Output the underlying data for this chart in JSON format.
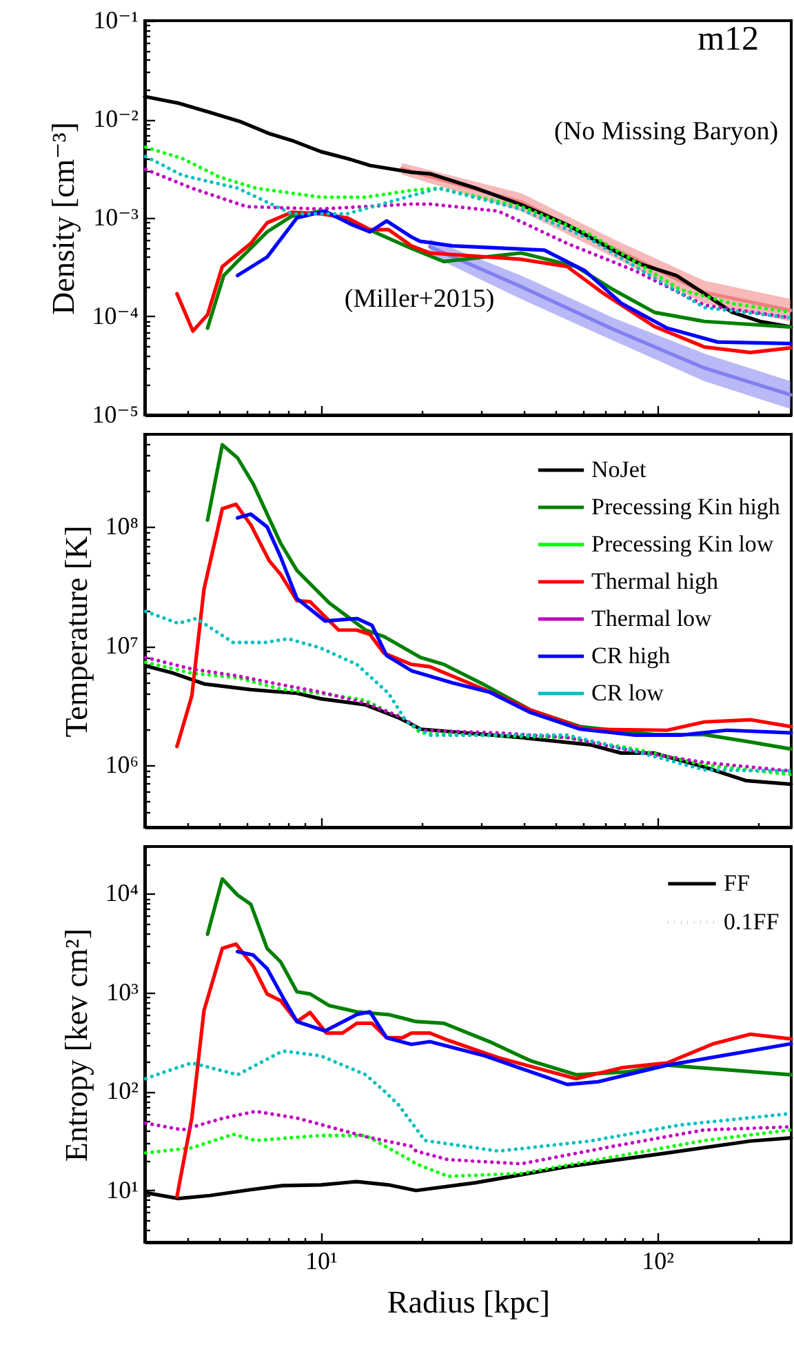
{
  "chart_data": [
    {
      "type": "line",
      "ylabel": "Density [cm⁻³]",
      "log": "xy",
      "legend": false,
      "tick_labels": "y",
      "annotations": [
        "m12",
        "(No Missing Baryon)",
        "(Miller+2015)"
      ],
      "xlim": [
        3,
        250
      ],
      "ylim": [
        1e-05,
        0.1
      ],
      "xticks": [
        {
          "value": 3,
          "label": null
        },
        {
          "value": 4,
          "label": null
        },
        {
          "value": 5,
          "label": null
        },
        {
          "value": 6,
          "label": null
        },
        {
          "value": 7,
          "label": null
        },
        {
          "value": 8,
          "label": null
        },
        {
          "value": 9,
          "label": null
        },
        {
          "value": 10,
          "label": null
        },
        {
          "value": 20,
          "label": null
        },
        {
          "value": 30,
          "label": null
        },
        {
          "value": 40,
          "label": null
        },
        {
          "value": 50,
          "label": null
        },
        {
          "value": 60,
          "label": null
        },
        {
          "value": 70,
          "label": null
        },
        {
          "value": 80,
          "label": null
        },
        {
          "value": 90,
          "label": null
        },
        {
          "value": 100,
          "label": null
        },
        {
          "value": 200,
          "label": null
        }
      ],
      "yticks": [
        {
          "value": 1e-05,
          "label": "10⁻⁵"
        },
        {
          "value": 2e-05,
          "label": null
        },
        {
          "value": 3e-05,
          "label": null
        },
        {
          "value": 4e-05,
          "label": null
        },
        {
          "value": 5e-05,
          "label": null
        },
        {
          "value": 6e-05,
          "label": null
        },
        {
          "value": 7e-05,
          "label": null
        },
        {
          "value": 8e-05,
          "label": null
        },
        {
          "value": 9e-05,
          "label": null
        },
        {
          "value": 0.0001,
          "label": "10⁻⁴"
        },
        {
          "value": 0.0002,
          "label": null
        },
        {
          "value": 0.0003,
          "label": null
        },
        {
          "value": 0.0004,
          "label": null
        },
        {
          "value": 0.0005,
          "label": null
        },
        {
          "value": 0.0006,
          "label": null
        },
        {
          "value": 0.0007,
          "label": null
        },
        {
          "value": 0.0008,
          "label": null
        },
        {
          "value": 0.0009,
          "label": null
        },
        {
          "value": 0.001,
          "label": "10⁻³"
        },
        {
          "value": 0.002,
          "label": null
        },
        {
          "value": 0.003,
          "label": null
        },
        {
          "value": 0.004,
          "label": null
        },
        {
          "value": 0.005,
          "label": null
        },
        {
          "value": 0.006,
          "label": null
        },
        {
          "value": 0.007,
          "label": null
        },
        {
          "value": 0.008,
          "label": null
        },
        {
          "value": 0.009,
          "label": null
        },
        {
          "value": 0.01,
          "label": "10⁻²"
        },
        {
          "value": 0.02,
          "label": null
        },
        {
          "value": 0.03,
          "label": null
        },
        {
          "value": 0.04,
          "label": null
        },
        {
          "value": 0.05,
          "label": null
        },
        {
          "value": 0.06,
          "label": null
        },
        {
          "value": 0.07,
          "label": null
        },
        {
          "value": 0.08,
          "label": null
        },
        {
          "value": 0.09,
          "label": null
        },
        {
          "value": 0.1,
          "label": "10⁻¹"
        }
      ],
      "series": [
        {
          "type": "line",
          "color": "#f08080",
          "x": [
            17.4,
            39.4,
            73.9,
            138,
            249
          ],
          "values": [
            0.00315,
            0.00145,
            0.00049,
            0.000175,
            0.000115
          ],
          "lower": [
            0.00275,
            0.00117,
            0.0004,
            0.000135,
            8.9e-05
          ],
          "upper": [
            0.0036,
            0.00178,
            0.00061,
            0.00023,
            0.00015
          ]
        },
        {
          "type": "line",
          "color": "#8080f0",
          "x": [
            21.1,
            39.4,
            73.9,
            138,
            249
          ],
          "values": [
            0.00051,
            0.0002,
            7.4e-05,
            3e-05,
            1.6e-05
          ],
          "lower": [
            0.00042,
            0.00015,
            5.7e-05,
            2.2e-05,
            1.15e-05
          ],
          "upper": [
            0.00061,
            0.00026,
            9.7e-05,
            4.2e-05,
            2.2e-05
          ]
        },
        {
          "color": "#000000",
          "line_style": "solid",
          "x": [
            3,
            3.8,
            4.7,
            5.8,
            7,
            8.2,
            10,
            12,
            14,
            18.6,
            21.1,
            28.9,
            39.4,
            54,
            73.9,
            89,
            114,
            138,
            167,
            202,
            250
          ],
          "values": [
            0.017,
            0.0145,
            0.0117,
            0.0094,
            0.0072,
            0.0061,
            0.0047,
            0.004,
            0.0034,
            0.0029,
            0.0028,
            0.002,
            0.00136,
            0.00085,
            0.00047,
            0.00034,
            0.00026,
            0.00017,
            0.00011,
            8.9e-05,
            7.8e-05
          ]
        },
        {
          "color": "#008000",
          "line_style": "solid",
          "x": [
            4.61,
            5.15,
            5.83,
            6.93,
            8.2,
            10,
            12,
            14.4,
            18.6,
            23.2,
            39.4,
            57.4,
            73.9,
            98,
            138,
            249
          ],
          "values": [
            7.6e-05,
            0.00026,
            0.0004,
            0.00072,
            0.00104,
            0.00117,
            0.00093,
            0.00072,
            0.00049,
            0.00036,
            0.00044,
            0.00032,
            0.000187,
            0.00011,
            8.9e-05,
            7.8e-05
          ]
        },
        {
          "color": "#00ff00",
          "line_style": "dotted",
          "x": [
            3.02,
            3.88,
            5,
            6.41,
            10,
            13.6,
            18.6,
            22.4,
            39.4,
            63,
            86,
            117,
            167,
            249
          ],
          "values": [
            0.0052,
            0.004,
            0.0026,
            0.002,
            0.00162,
            0.00162,
            0.0019,
            0.002,
            0.0013,
            0.00068,
            0.00036,
            0.000187,
            0.000135,
            0.00011
          ]
        },
        {
          "color": "#ff0000",
          "line_style": "solid",
          "x": [
            3.74,
            4.17,
            4.61,
            5.1,
            6.2,
            6.93,
            8.2,
            10,
            12,
            14,
            15.9,
            18.6,
            21.1,
            39.4,
            54,
            69.4,
            98,
            138,
            189,
            249
          ],
          "values": [
            0.00017,
            7.1e-05,
            0.000104,
            0.00032,
            0.00055,
            0.00089,
            0.00114,
            0.0011,
            0.001,
            0.00076,
            0.00076,
            0.00052,
            0.00044,
            0.00038,
            0.00032,
            0.00017,
            7.9e-05,
            4.9e-05,
            4.3e-05,
            4.8e-05
          ]
        },
        {
          "color": "#bf00bf",
          "line_style": "dotted",
          "x": [
            3.02,
            4.14,
            6.02,
            10,
            18.6,
            21.1,
            33.7,
            54,
            86,
            138,
            249
          ],
          "values": [
            0.0031,
            0.002,
            0.0013,
            0.00123,
            0.00138,
            0.00138,
            0.00117,
            0.00055,
            0.00029,
            0.00013,
            9.7e-05
          ]
        },
        {
          "color": "#0000ff",
          "line_style": "solid",
          "x": [
            5.66,
            6.93,
            8.5,
            10.3,
            12.4,
            14,
            15.7,
            18.6,
            19.7,
            24.6,
            46.2,
            61,
            78.4,
            107,
            151,
            249
          ],
          "values": [
            0.00026,
            0.0004,
            0.001,
            0.00117,
            0.00085,
            0.00072,
            0.00093,
            0.00064,
            0.00058,
            0.00052,
            0.00047,
            0.00029,
            0.000135,
            7.6e-05,
            5.5e-05,
            5.3e-05
          ]
        },
        {
          "color": "#00bfbf",
          "line_style": "dotted",
          "x": [
            3.02,
            3.88,
            5.66,
            8.2,
            12,
            15.9,
            22.4,
            39.4,
            63,
            86,
            138,
            249
          ],
          "values": [
            0.0042,
            0.0027,
            0.002,
            0.0011,
            0.0011,
            0.00144,
            0.002,
            0.00122,
            0.00061,
            0.00032,
            0.000123,
            9.7e-05
          ]
        }
      ]
    },
    {
      "type": "line",
      "ylabel": "Temperature [K]",
      "log": "xy",
      "legend": "top right",
      "tick_labels": "y",
      "xlim": [
        3,
        250
      ],
      "ylim": [
        300000,
        600000000
      ],
      "xticks": [
        {
          "value": 3,
          "label": null
        },
        {
          "value": 4,
          "label": null
        },
        {
          "value": 5,
          "label": null
        },
        {
          "value": 6,
          "label": null
        },
        {
          "value": 7,
          "label": null
        },
        {
          "value": 8,
          "label": null
        },
        {
          "value": 9,
          "label": null
        },
        {
          "value": 10,
          "label": null
        },
        {
          "value": 20,
          "label": null
        },
        {
          "value": 30,
          "label": null
        },
        {
          "value": 40,
          "label": null
        },
        {
          "value": 50,
          "label": null
        },
        {
          "value": 60,
          "label": null
        },
        {
          "value": 70,
          "label": null
        },
        {
          "value": 80,
          "label": null
        },
        {
          "value": 90,
          "label": null
        },
        {
          "value": 100,
          "label": null
        },
        {
          "value": 200,
          "label": null
        }
      ],
      "yticks": [
        {
          "value": 300000,
          "label": null
        },
        {
          "value": 400000,
          "label": null
        },
        {
          "value": 500000,
          "label": null
        },
        {
          "value": 600000,
          "label": null
        },
        {
          "value": 700000,
          "label": null
        },
        {
          "value": 800000,
          "label": null
        },
        {
          "value": 900000,
          "label": null
        },
        {
          "value": 1000000,
          "label": "10⁶"
        },
        {
          "value": 2000000,
          "label": null
        },
        {
          "value": 3000000,
          "label": null
        },
        {
          "value": 4000000,
          "label": null
        },
        {
          "value": 5000000,
          "label": null
        },
        {
          "value": 6000000,
          "label": null
        },
        {
          "value": 7000000,
          "label": null
        },
        {
          "value": 8000000,
          "label": null
        },
        {
          "value": 9000000,
          "label": null
        },
        {
          "value": 10000000,
          "label": "10⁷"
        },
        {
          "value": 20000000,
          "label": null
        },
        {
          "value": 30000000,
          "label": null
        },
        {
          "value": 40000000,
          "label": null
        },
        {
          "value": 50000000,
          "label": null
        },
        {
          "value": 60000000,
          "label": null
        },
        {
          "value": 70000000,
          "label": null
        },
        {
          "value": 80000000,
          "label": null
        },
        {
          "value": 90000000,
          "label": null
        },
        {
          "value": 100000000,
          "label": "10⁸"
        },
        {
          "value": 200000000,
          "label": null
        },
        {
          "value": 300000000,
          "label": null
        },
        {
          "value": 400000000,
          "label": null
        },
        {
          "value": 500000000,
          "label": null
        },
        {
          "value": 600000000,
          "label": null
        }
      ],
      "series": [
        {
          "name": "NoJet",
          "color": "#000000",
          "line_style": "solid",
          "x": [
            3.02,
            3.65,
            4.5,
            6.2,
            8.5,
            10,
            13.6,
            17,
            18.6,
            19.8,
            39.4,
            63,
            78,
            98,
            138,
            183,
            250
          ],
          "values": [
            6800000,
            5900000,
            4800000,
            4300000,
            4000000,
            3600000,
            3200000,
            2500000,
            2200000,
            2000000,
            1700000,
            1480000,
            1260000,
            1260000,
            960000,
            740000,
            690000
          ]
        },
        {
          "name": "Precessing Kin high",
          "color": "#008000",
          "line_style": "solid",
          "x": [
            4.61,
            5.1,
            5.66,
            6.3,
            7.6,
            8.5,
            10.6,
            13.6,
            15.4,
            19.8,
            23.2,
            30.7,
            42,
            59,
            98,
            138,
            189,
            250
          ],
          "values": [
            114000000,
            490000000,
            380000000,
            230000000,
            73000000,
            43000000,
            23000000,
            13600000,
            12000000,
            8000000,
            7000000,
            4700000,
            2900000,
            2100000,
            1800000,
            1800000,
            1560000,
            1360000
          ]
        },
        {
          "name": "Precessing Kin low",
          "color": "#00ff00",
          "line_style": "dotted",
          "x": [
            3.02,
            4.14,
            5.66,
            7.7,
            10,
            13.6,
            15.4,
            17.5,
            19.8,
            28.9,
            54,
            86,
            138,
            250
          ],
          "values": [
            7300000,
            5900000,
            5400000,
            4300000,
            4000000,
            3500000,
            2900000,
            2500000,
            1860000,
            1780000,
            1700000,
            1360000,
            1000000,
            830000
          ]
        },
        {
          "name": "Thermal high",
          "color": "#ff0000",
          "line_style": "solid",
          "x": [
            3.74,
            4.14,
            4.5,
            5.1,
            5.6,
            6.2,
            7.03,
            7.6,
            8.5,
            9.3,
            11.3,
            12.8,
            14,
            15.4,
            18.6,
            21.1,
            30.7,
            42,
            61,
            107,
            138,
            189,
            250
          ],
          "values": [
            1430000,
            3800000,
            30000000,
            142000000,
            155000000,
            104000000,
            52000000,
            40000000,
            24000000,
            23500000,
            13600000,
            13600000,
            12500000,
            8700000,
            7000000,
            6700000,
            4300000,
            2900000,
            2000000,
            1960000,
            2300000,
            2400000,
            2100000
          ]
        },
        {
          "name": "Thermal low",
          "color": "#bf00bf",
          "line_style": "dotted",
          "x": [
            3.02,
            4.14,
            5.66,
            7.7,
            10,
            13.6,
            17.5,
            19.8,
            33.7,
            54,
            86,
            138,
            250
          ],
          "values": [
            8000000,
            6400000,
            5600000,
            4700000,
            4100000,
            3300000,
            2500000,
            1960000,
            1860000,
            1700000,
            1300000,
            1050000,
            890000
          ]
        },
        {
          "name": "CR high",
          "color": "#0000ff",
          "line_style": "solid",
          "x": [
            5.66,
            6.2,
            6.93,
            7.6,
            8.5,
            10.3,
            12.8,
            14.2,
            15.7,
            18.6,
            24.6,
            31.7,
            42,
            59,
            86,
            117,
            161,
            250
          ],
          "values": [
            119000000,
            128000000,
            100000000,
            56000000,
            25000000,
            16200000,
            17000000,
            14900000,
            8300000,
            6200000,
            4900000,
            4100000,
            2760000,
            2000000,
            1780000,
            1780000,
            1960000,
            1860000
          ]
        },
        {
          "name": "CR low",
          "color": "#00bfbf",
          "line_style": "dotted",
          "x": [
            3.02,
            3.77,
            4.27,
            5.49,
            6.83,
            8,
            10,
            12.8,
            15.9,
            18,
            21.1,
            54,
            86,
            138,
            250
          ],
          "values": [
            19500000,
            15500000,
            17000000,
            10700000,
            10700000,
            11500000,
            9600000,
            7000000,
            4000000,
            2300000,
            1780000,
            1780000,
            1300000,
            910000,
            890000
          ]
        }
      ]
    },
    {
      "type": "line",
      "xlabel": "Radius [kpc]",
      "ylabel": "Entropy [kev cm²]",
      "log": "xy",
      "legend": "top right",
      "annotations": [
        "FF",
        "0.1FF"
      ],
      "xlim": [
        3,
        250
      ],
      "ylim": [
        3,
        30000
      ],
      "xticks": [
        {
          "value": 3,
          "label": null
        },
        {
          "value": 4,
          "label": null
        },
        {
          "value": 5,
          "label": null
        },
        {
          "value": 6,
          "label": null
        },
        {
          "value": 7,
          "label": null
        },
        {
          "value": 8,
          "label": null
        },
        {
          "value": 9,
          "label": null
        },
        {
          "value": 10,
          "label": "10¹"
        },
        {
          "value": 20,
          "label": null
        },
        {
          "value": 30,
          "label": null
        },
        {
          "value": 40,
          "label": null
        },
        {
          "value": 50,
          "label": null
        },
        {
          "value": 60,
          "label": null
        },
        {
          "value": 70,
          "label": null
        },
        {
          "value": 80,
          "label": null
        },
        {
          "value": 90,
          "label": null
        },
        {
          "value": 100,
          "label": "10²"
        },
        {
          "value": 200,
          "label": null
        }
      ],
      "yticks": [
        {
          "value": 3,
          "label": null
        },
        {
          "value": 4,
          "label": null
        },
        {
          "value": 5,
          "label": null
        },
        {
          "value": 6,
          "label": null
        },
        {
          "value": 7,
          "label": null
        },
        {
          "value": 8,
          "label": null
        },
        {
          "value": 9,
          "label": null
        },
        {
          "value": 10,
          "label": "10¹"
        },
        {
          "value": 20,
          "label": null
        },
        {
          "value": 30,
          "label": null
        },
        {
          "value": 40,
          "label": null
        },
        {
          "value": 50,
          "label": null
        },
        {
          "value": 60,
          "label": null
        },
        {
          "value": 70,
          "label": null
        },
        {
          "value": 80,
          "label": null
        },
        {
          "value": 90,
          "label": null
        },
        {
          "value": 100,
          "label": "10²"
        },
        {
          "value": 200,
          "label": null
        },
        {
          "value": 300,
          "label": null
        },
        {
          "value": 400,
          "label": null
        },
        {
          "value": 500,
          "label": null
        },
        {
          "value": 600,
          "label": null
        },
        {
          "value": 700,
          "label": null
        },
        {
          "value": 800,
          "label": null
        },
        {
          "value": 900,
          "label": null
        },
        {
          "value": 1000,
          "label": "10³"
        },
        {
          "value": 2000,
          "label": null
        },
        {
          "value": 3000,
          "label": null
        },
        {
          "value": 4000,
          "label": null
        },
        {
          "value": 5000,
          "label": null
        },
        {
          "value": 6000,
          "label": null
        },
        {
          "value": 7000,
          "label": null
        },
        {
          "value": 8000,
          "label": null
        },
        {
          "value": 9000,
          "label": null
        },
        {
          "value": 10000,
          "label": "10⁴"
        },
        {
          "value": 20000,
          "label": null
        },
        {
          "value": 30000,
          "label": null
        }
      ],
      "series": [
        {
          "color": "#000000",
          "line_style": "solid",
          "x": [
            3.02,
            3.77,
            4.69,
            6.2,
            7.7,
            10,
            12.8,
            15.9,
            19.2,
            28.9,
            54,
            98,
            189,
            250
          ],
          "values": [
            9.5,
            8.3,
            8.9,
            10.2,
            11.2,
            11.4,
            12.3,
            11.4,
            10,
            12,
            17.4,
            23,
            31.6,
            34
          ]
        },
        {
          "color": "#008000",
          "line_style": "solid",
          "x": [
            4.61,
            5.1,
            5.66,
            6.2,
            6.93,
            7.6,
            8.5,
            9.3,
            10.6,
            12.8,
            15.9,
            18,
            19.2,
            23.2,
            31.7,
            42,
            57.4,
            81,
            107,
            161,
            250
          ],
          "values": [
            3900,
            14100,
            9700,
            7800,
            2800,
            2050,
            1020,
            970,
            740,
            640,
            600,
            540,
            510,
            490,
            320,
            205,
            148,
            158,
            185,
            166,
            148
          ]
        },
        {
          "color": "#00ff00",
          "line_style": "dotted",
          "x": [
            3.02,
            4.14,
            5.5,
            6.4,
            10,
            13.6,
            18.6,
            19.2,
            23.9,
            39.4,
            73.9,
            138,
            250
          ],
          "values": [
            24,
            27,
            37,
            32,
            36,
            36,
            20,
            18.6,
            13.9,
            14.9,
            21.8,
            32,
            41
          ]
        },
        {
          "color": "#ff0000",
          "line_style": "solid",
          "x": [
            3.74,
            4.14,
            4.5,
            5.1,
            5.6,
            6.3,
            6.93,
            7.6,
            8.5,
            9.3,
            10.4,
            11.6,
            12.8,
            14.2,
            15.7,
            17.5,
            18.6,
            21.1,
            23.9,
            33.7,
            57.4,
            78.4,
            107,
            147,
            189,
            250
          ],
          "values": [
            8.7,
            54,
            660,
            2800,
            3100,
            1850,
            970,
            830,
            510,
            630,
            390,
            390,
            490,
            490,
            350,
            350,
            390,
            390,
            330,
            220,
            135,
            174,
            195,
            305,
            380,
            340
          ]
        },
        {
          "color": "#bf00bf",
          "line_style": "dotted",
          "x": [
            3.02,
            3.88,
            5.15,
            6.4,
            8.5,
            13.6,
            18.6,
            19.2,
            23.9,
            39.4,
            73.9,
            138,
            250
          ],
          "values": [
            48,
            41,
            54,
            63,
            54,
            35,
            28,
            25,
            20.5,
            18.6,
            28,
            41,
            44
          ]
        },
        {
          "color": "#0000ff",
          "line_style": "solid",
          "x": [
            5.66,
            6.3,
            6.93,
            7.7,
            8.5,
            10.3,
            12.8,
            14,
            15.7,
            18.6,
            21.1,
            30.7,
            54,
            67,
            107,
            167,
            250
          ],
          "values": [
            2600,
            2400,
            1750,
            910,
            510,
            410,
            600,
            640,
            350,
            300,
            320,
            230,
            118,
            126,
            185,
            240,
            305
          ]
        },
        {
          "color": "#00bfbf",
          "line_style": "dotted",
          "x": [
            3.02,
            3.44,
            4.14,
            5.66,
            7.7,
            10,
            13.6,
            15.4,
            17,
            20.4,
            33.7,
            63,
            117,
            250
          ],
          "values": [
            135,
            158,
            195,
            148,
            257,
            230,
            148,
            102,
            74,
            32,
            25,
            31.6,
            46,
            60
          ]
        }
      ]
    }
  ]
}
